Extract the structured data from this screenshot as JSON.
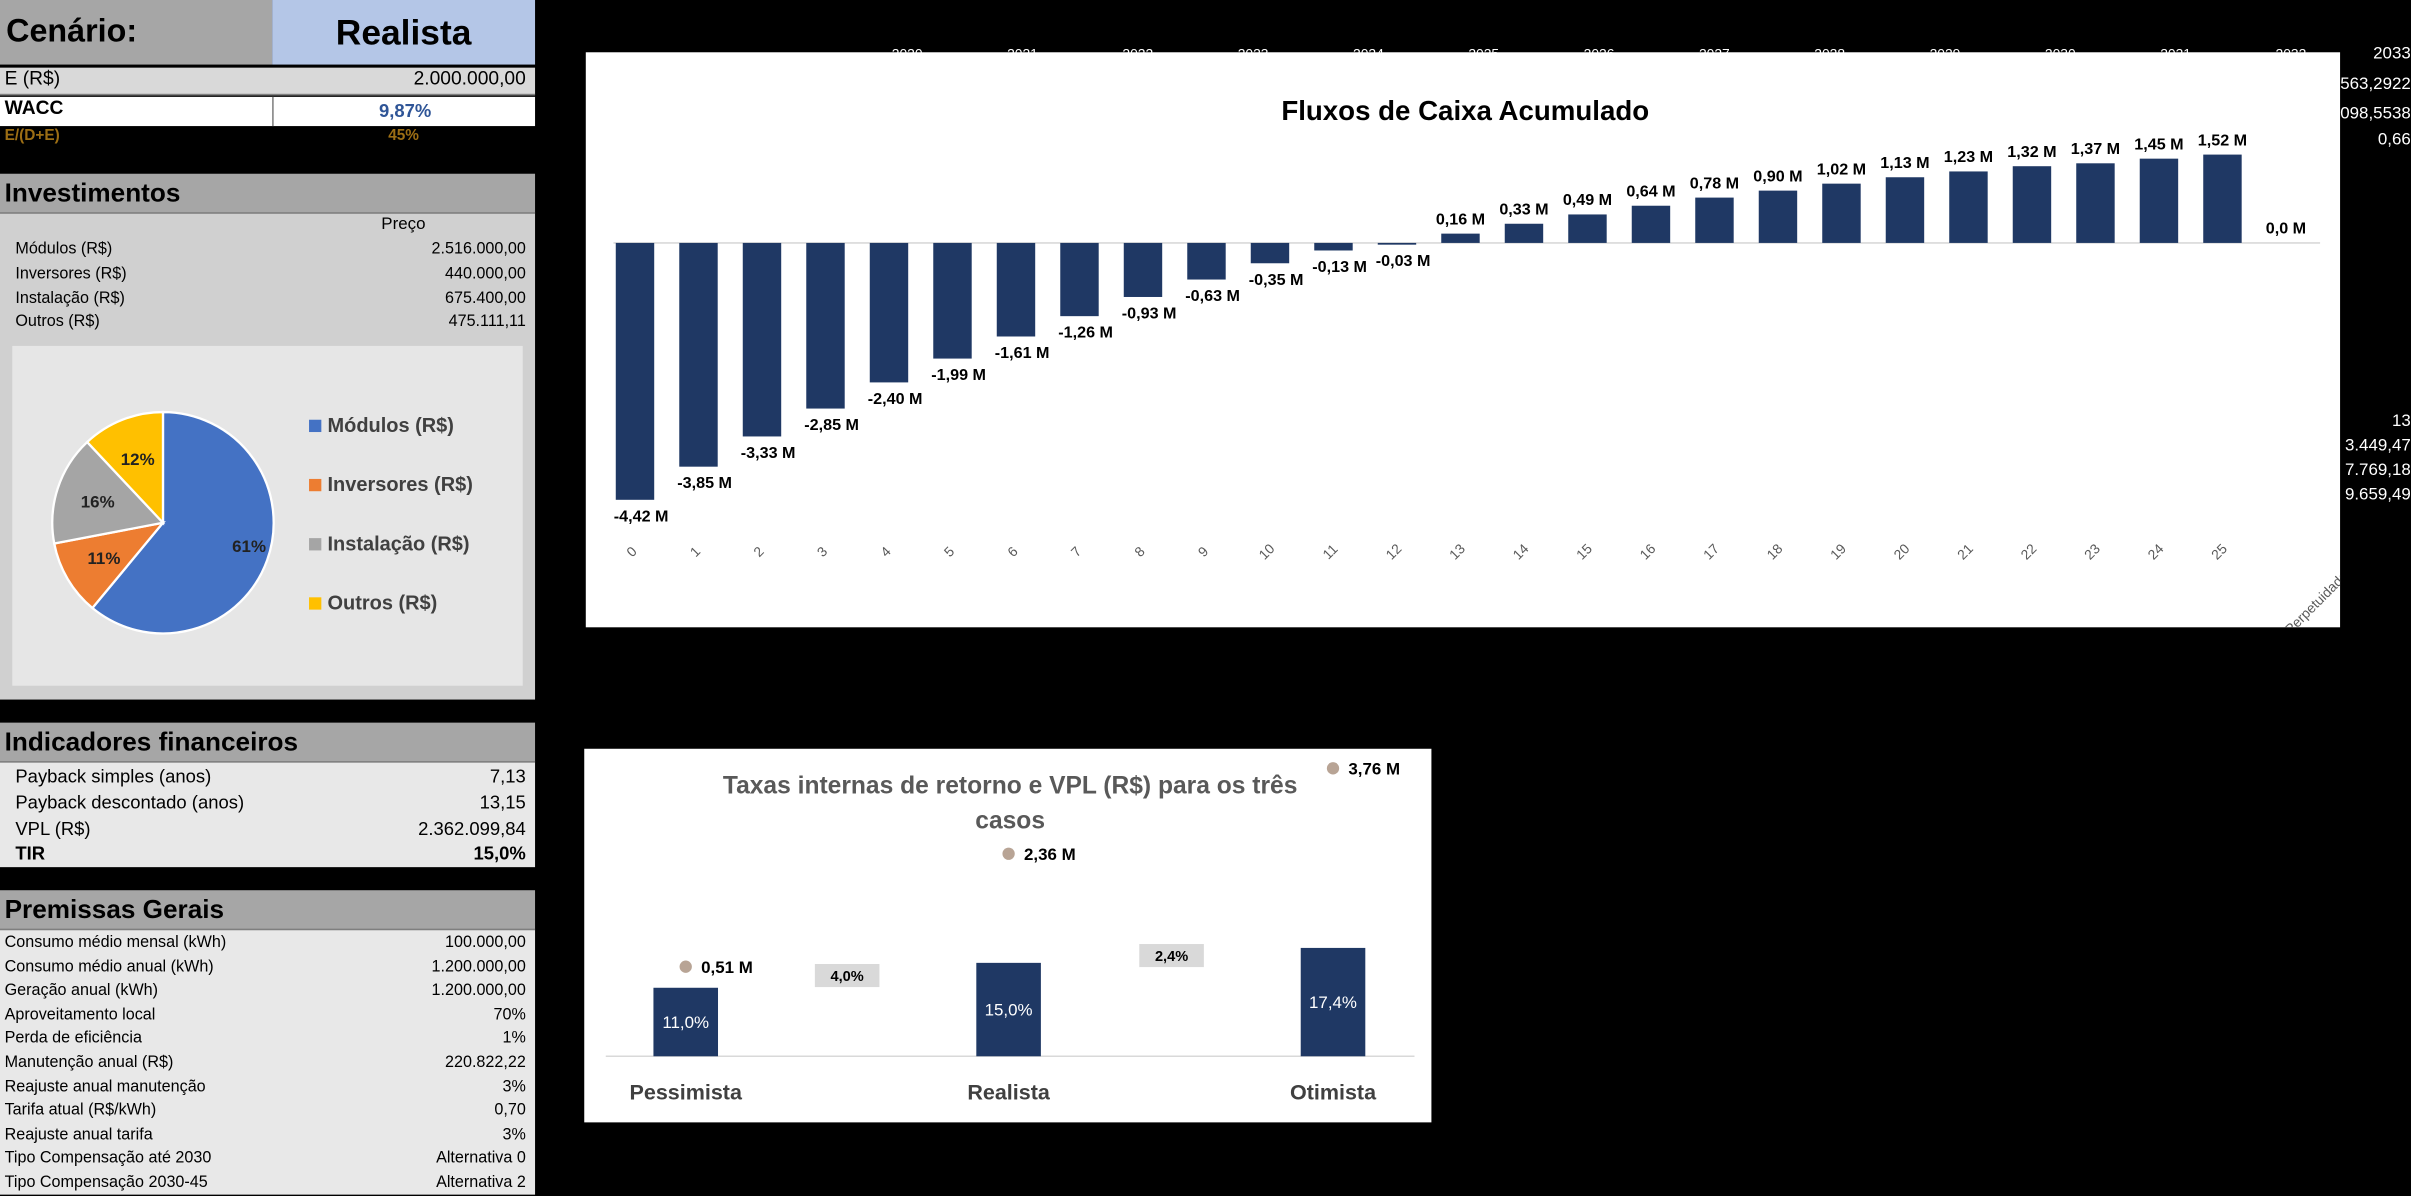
{
  "scenario": {
    "label": "Cenário:",
    "value": "Realista"
  },
  "capital": [
    {
      "label": "E (R$)",
      "value": "2.000.000,00"
    },
    {
      "label": "WACC",
      "value": "9,87%"
    },
    {
      "label": "E/(D+E)",
      "value": "45%"
    }
  ],
  "top_hidden_years": [
    "2020",
    "2021",
    "2022",
    "2023",
    "2024",
    "2025",
    "2026",
    "2027",
    "2028",
    "2029",
    "2030",
    "2031",
    "2032"
  ],
  "right_edge": {
    "top": [
      "2033",
      "563,2922",
      "098,5538",
      "0,66"
    ],
    "middle": [
      "13",
      "3.449,47",
      "7.769,18",
      "9.659,49"
    ]
  },
  "investimentos": {
    "title": "Investimentos",
    "col_header": "Preço",
    "items": [
      {
        "label": "Módulos (R$)",
        "value": "2.516.000,00"
      },
      {
        "label": "Inversores (R$)",
        "value": "440.000,00"
      },
      {
        "label": "Instalação (R$)",
        "value": "675.400,00"
      },
      {
        "label": "Outros (R$)",
        "value": "475.111,11"
      }
    ],
    "pie": {
      "colors": [
        "#4472c4",
        "#ed7d31",
        "#a5a5a5",
        "#ffc000"
      ],
      "legend": [
        "Módulos (R$)",
        "Inversores (R$)",
        "Instalação (R$)",
        "Outros (R$)"
      ]
    }
  },
  "indicadores": {
    "title": "Indicadores financeiros",
    "items": [
      {
        "label": "Payback simples (anos)",
        "value": "7,13"
      },
      {
        "label": "Payback descontado (anos)",
        "value": "13,15"
      },
      {
        "label": "VPL (R$)",
        "value": "2.362.099,84"
      },
      {
        "label": "TIR",
        "value": "15,0%"
      }
    ]
  },
  "premissas": {
    "title": "Premissas Gerais",
    "items": [
      {
        "label": "Consumo médio mensal (kWh)",
        "value": "100.000,00"
      },
      {
        "label": "Consumo médio anual (kWh)",
        "value": "1.200.000,00"
      },
      {
        "label": "Geração anual (kWh)",
        "value": "1.200.000,00"
      },
      {
        "label": "Aproveitamento local",
        "value": "70%"
      },
      {
        "label": "Perda de eficiência",
        "value": "1%"
      },
      {
        "label": "Manutenção anual (R$)",
        "value": "220.822,22"
      },
      {
        "label": "Reajuste anual manutenção",
        "value": "3%"
      },
      {
        "label": "Tarifa atual (R$/kWh)",
        "value": "0,70"
      },
      {
        "label": "Reajuste anual tarifa",
        "value": "3%"
      },
      {
        "label": "Tipo Compensação até 2030",
        "value": "Alternativa 0"
      },
      {
        "label": "Tipo Compensação 2030-45",
        "value": "Alternativa 2"
      }
    ]
  },
  "chart_data": [
    {
      "type": "pie",
      "categories": [
        "Módulos (R$)",
        "Inversores (R$)",
        "Instalação (R$)",
        "Outros (R$)"
      ],
      "values": [
        61,
        11,
        16,
        12
      ],
      "labels": [
        "61%",
        "11%",
        "16%",
        "12%"
      ]
    },
    {
      "type": "bar",
      "title": "Fluxos de Caixa Acumulado",
      "categories": [
        "0",
        "1",
        "2",
        "3",
        "4",
        "5",
        "6",
        "7",
        "8",
        "9",
        "10",
        "11",
        "12",
        "13",
        "14",
        "15",
        "16",
        "17",
        "18",
        "19",
        "20",
        "21",
        "22",
        "23",
        "24",
        "25",
        "Perpetuidade"
      ],
      "values": [
        -4.42,
        -3.85,
        -3.33,
        -2.85,
        -2.4,
        -1.99,
        -1.61,
        -1.26,
        -0.93,
        -0.63,
        -0.35,
        -0.13,
        -0.03,
        0.16,
        0.33,
        0.49,
        0.64,
        0.78,
        0.9,
        1.02,
        1.13,
        1.23,
        1.32,
        1.37,
        1.45,
        1.52,
        0.0
      ],
      "labels": [
        "-4,42 M",
        "-3,85 M",
        "-3,33 M",
        "-2,85 M",
        "-2,40 M",
        "-1,99 M",
        "-1,61 M",
        "-1,26 M",
        "-0,93 M",
        "-0,63 M",
        "-0,35 M",
        "-0,13 M",
        "-0,03 M",
        "0,16 M",
        "0,33 M",
        "0,49 M",
        "0,64 M",
        "0,78 M",
        "0,90 M",
        "1,02 M",
        "1,13 M",
        "1,23 M",
        "1,32 M",
        "1,37 M",
        "1,45 M",
        "1,52 M",
        "0,0 M"
      ],
      "color": "#1f3864"
    },
    {
      "type": "bar",
      "title": "Taxas internas de retorno e VPL (R$) para os três casos",
      "categories": [
        "Pessimista",
        "Realista",
        "Otimista"
      ],
      "tir": [
        11.0,
        15.0,
        17.4
      ],
      "tir_labels": [
        "11,0%",
        "15,0%",
        "17,4%"
      ],
      "vpl": [
        0.51,
        2.36,
        3.76
      ],
      "vpl_labels": [
        "0,51 M",
        "2,36 M",
        "3,76 M"
      ],
      "diffs": [
        "4,0%",
        "2,4%"
      ],
      "colors": {
        "bar": "#1f3864",
        "marker": "#b8a495",
        "diff_box": "#d9d9d9"
      }
    }
  ]
}
